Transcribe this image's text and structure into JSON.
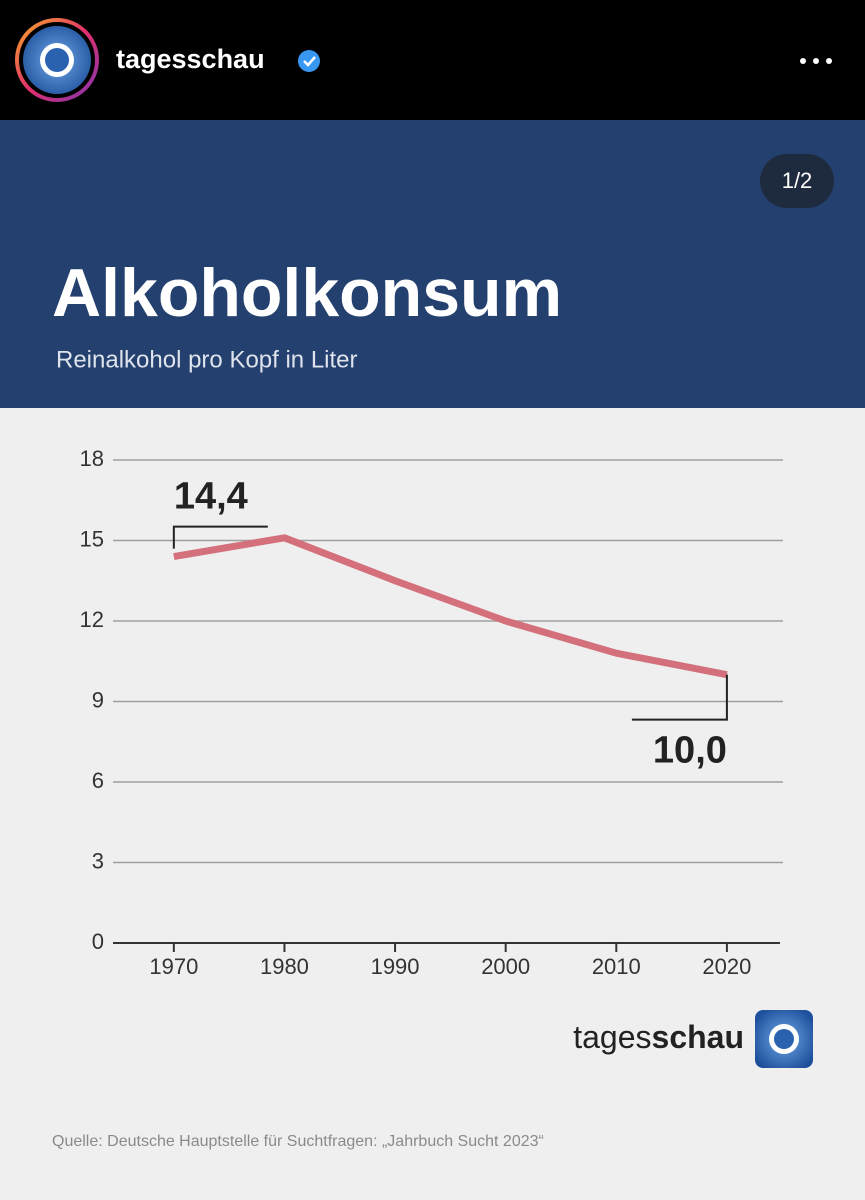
{
  "header": {
    "username": "tagesschau",
    "page_indicator": "1/2"
  },
  "chart_data": {
    "type": "line",
    "title": "Alkoholkonsum",
    "subtitle": "Reinalkohol pro Kopf in Liter",
    "x": [
      1970,
      1980,
      1990,
      2000,
      2010,
      2020
    ],
    "values": [
      14.4,
      15.1,
      13.5,
      12.0,
      10.8,
      10.0
    ],
    "value_labels": [
      "14,4",
      null,
      null,
      null,
      null,
      "10,0"
    ],
    "color": "#d4707c",
    "xlim": [
      1964.5,
      2024.8
    ],
    "xticks": [
      1970,
      1980,
      1990,
      2000,
      2010,
      2020
    ],
    "ylim": [
      0,
      18
    ],
    "yticks": [
      0,
      3,
      6,
      9,
      12,
      15,
      18
    ],
    "grid": true
  },
  "footer": {
    "brand_light": "tages",
    "brand_bold": "schau",
    "source": "Quelle: Deutsche Hauptstelle für Suchtfragen: „Jahrbuch Sucht 2023“"
  }
}
